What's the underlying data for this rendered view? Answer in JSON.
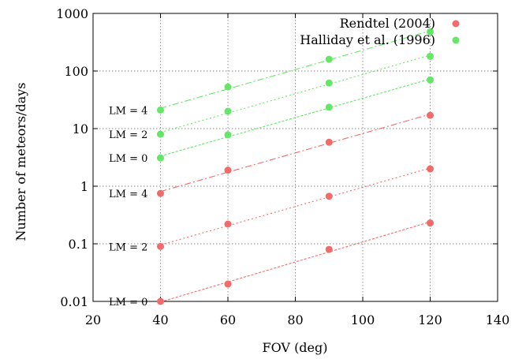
{
  "chart_data": {
    "type": "scatter",
    "xlabel": "FOV (deg)",
    "ylabel": "Number of meteors/days",
    "xlim": [
      20,
      140
    ],
    "ylim": [
      0.01,
      1000
    ],
    "y_scale": "log",
    "grid": true,
    "legend_position": "top-right",
    "x_ticks": [
      "20",
      "40",
      "60",
      "80",
      "100",
      "120",
      "140"
    ],
    "y_ticks": [
      "0.01",
      "0.1",
      "1",
      "10",
      "100",
      "1000"
    ],
    "x_tick_values": [
      20,
      40,
      60,
      80,
      100,
      120,
      140
    ],
    "y_tick_values": [
      0.01,
      0.1,
      1,
      10,
      100,
      1000
    ],
    "series": [
      {
        "name": "Rendtel (2004)",
        "color": "#f26b6b",
        "groups": [
          {
            "label": "LM = 4",
            "x": [
              40,
              60,
              90,
              120
            ],
            "y": [
              0.75,
              1.9,
              5.8,
              17
            ]
          },
          {
            "label": "LM = 2",
            "x": [
              40,
              60,
              90,
              120
            ],
            "y": [
              0.09,
              0.22,
              0.67,
              2.0
            ]
          },
          {
            "label": "LM = 0",
            "x": [
              40,
              60,
              90,
              120
            ],
            "y": [
              0.01,
              0.02,
              0.08,
              0.23
            ]
          }
        ]
      },
      {
        "name": "Halliday et al. (1996)",
        "color": "#66e666",
        "groups": [
          {
            "label": "LM = 4",
            "x": [
              40,
              60,
              90,
              120
            ],
            "y": [
              21,
              53,
              160,
              480
            ]
          },
          {
            "label": "LM = 2",
            "x": [
              40,
              60,
              90,
              120
            ],
            "y": [
              8,
              20,
              62,
              180
            ]
          },
          {
            "label": "LM = 0",
            "x": [
              40,
              60,
              90,
              120
            ],
            "y": [
              3.1,
              7.8,
              23.5,
              70
            ]
          }
        ]
      }
    ]
  }
}
